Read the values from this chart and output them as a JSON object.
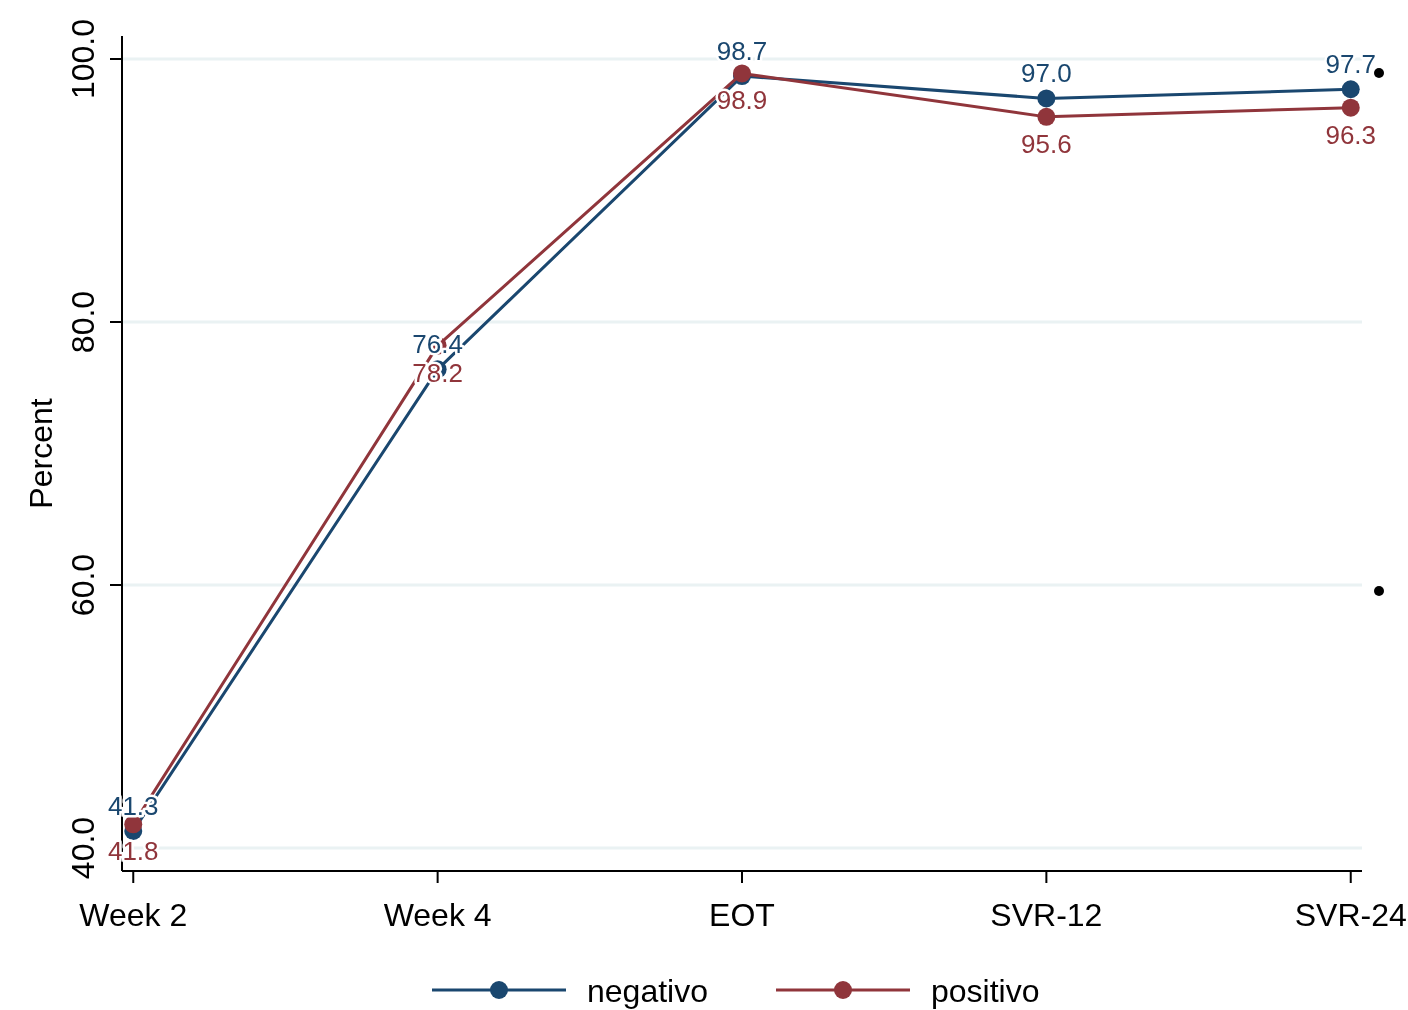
{
  "chart_data": {
    "type": "line",
    "ylabel": "Percent",
    "categories": [
      "Week 2",
      "Week 4",
      "EOT",
      "SVR-12",
      "SVR-24"
    ],
    "series": [
      {
        "name": "negativo",
        "color": "#1a476f",
        "values": [
          41.3,
          76.4,
          98.7,
          97.0,
          97.7
        ],
        "value_labels": [
          "41.3",
          "76.4",
          "98.7",
          "97.0",
          "97.7"
        ]
      },
      {
        "name": "positivo",
        "color": "#90353b",
        "values": [
          41.8,
          78.2,
          98.9,
          95.6,
          96.3
        ],
        "value_labels": [
          "41.8",
          "78.2",
          "98.9",
          "95.6",
          "96.3"
        ]
      }
    ],
    "ylim": [
      38.25,
      101.75
    ],
    "yticks": [
      {
        "value": 40,
        "label": "40.0"
      },
      {
        "value": 60,
        "label": "60.0"
      },
      {
        "value": 80,
        "label": "80.0"
      },
      {
        "value": 100,
        "label": "100.0"
      }
    ],
    "grid": "y",
    "legend": "bottom",
    "marker": "circle",
    "line_style": "solid"
  }
}
